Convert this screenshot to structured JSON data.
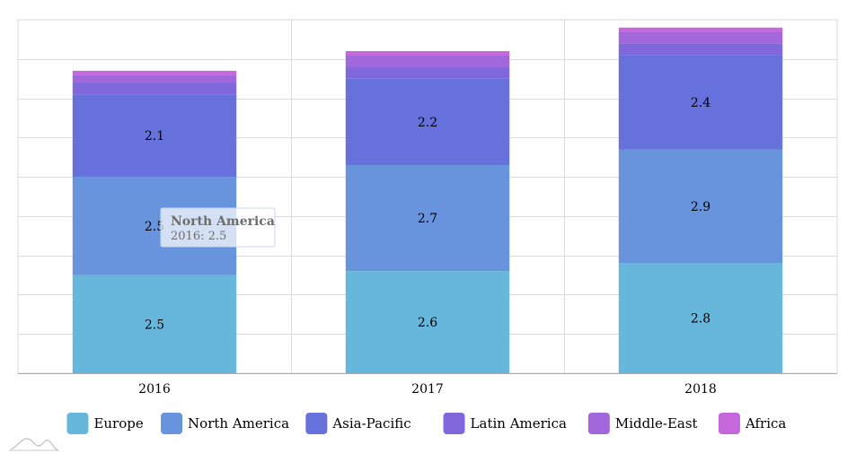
{
  "chart_data": {
    "type": "bar",
    "stacked": true,
    "categories": [
      "2016",
      "2017",
      "2018"
    ],
    "ylim": [
      0,
      9
    ],
    "grid": true,
    "legend_position": "bottom",
    "series": [
      {
        "name": "Europe",
        "color": "#67b7dc",
        "values": [
          2.5,
          2.6,
          2.8
        ]
      },
      {
        "name": "North America",
        "color": "#6794dc",
        "values": [
          2.5,
          2.7,
          2.9
        ]
      },
      {
        "name": "Asia-Pacific",
        "color": "#6771dc",
        "values": [
          2.1,
          2.2,
          2.4
        ]
      },
      {
        "name": "Latin America",
        "color": "#8067dc",
        "values": [
          0.3,
          0.3,
          0.3
        ]
      },
      {
        "name": "Middle-East",
        "color": "#a367dc",
        "values": [
          0.2,
          0.3,
          0.3
        ]
      },
      {
        "name": "Africa",
        "color": "#c767dc",
        "values": [
          0.1,
          0.1,
          0.1
        ]
      }
    ],
    "data_labels": [
      [
        "2.5",
        "2.6",
        "2.8"
      ],
      [
        "2.5",
        "2.7",
        "2.9"
      ],
      [
        "2.1",
        "2.2",
        "2.4"
      ]
    ]
  },
  "tooltip": {
    "title": "North America",
    "body": "2016: 2.5",
    "series_index": 1,
    "category_index": 0
  }
}
